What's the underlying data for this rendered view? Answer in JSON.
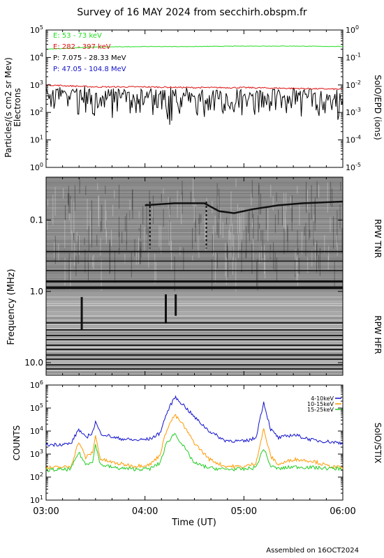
{
  "title": "Survey of 16 MAY 2024 from secchirh.obspm.fr",
  "footer": "Assembled on 16OCT2024",
  "time_axis": {
    "label": "Time (UT)",
    "ticks": [
      "03:00",
      "04:00",
      "05:00",
      "06:00"
    ],
    "range_hours": [
      3,
      6
    ]
  },
  "chart_data": [
    {
      "type": "line",
      "name": "epd",
      "log_y": true,
      "ylabel_left": "Particles/(s cm2 sr Mev)",
      "ylabel_left2": "Electrons",
      "ylabel_right": "SolO/EPD (ions)",
      "left_ticks": [
        "10^0",
        "10^1",
        "10^2",
        "10^3",
        "10^4",
        "10^5"
      ],
      "left_range_exp": [
        0,
        5
      ],
      "right_ticks": [
        "10^-5",
        "10^-4",
        "10^-3",
        "10^-2",
        "10^-1",
        "10^0"
      ],
      "legend": [
        {
          "label": "E: 53 - 73 keV",
          "color": "#22dd22"
        },
        {
          "label": "E: 282 - 397 keV",
          "color": "#dd1111"
        },
        {
          "label": "P: 7.075 - 28.33 MeV",
          "color": "#000000"
        },
        {
          "label": "P: 47.05 - 104.8 MeV",
          "color": "#1111cc"
        }
      ],
      "series": [
        {
          "name": "E: 53 - 73 keV",
          "x": [
            3.0,
            3.5,
            4.0,
            4.5,
            5.0,
            5.5,
            6.0
          ],
          "values": [
            20000,
            24000,
            25000,
            25000,
            26000,
            26000,
            25000
          ]
        },
        {
          "name": "E: 282 - 397 keV",
          "x": [
            3.0,
            3.5,
            4.0,
            4.5,
            5.0,
            5.5,
            6.0
          ],
          "values": [
            1000,
            850,
            850,
            800,
            800,
            750,
            700
          ]
        },
        {
          "name": "P: 7.075 - 28.33 MeV",
          "x": [
            3.0,
            3.5,
            4.0,
            4.5,
            5.0,
            5.5,
            6.0
          ],
          "values": [
            900,
            700,
            700,
            650,
            700,
            650,
            600
          ]
        }
      ]
    },
    {
      "type": "heatmap",
      "name": "rpw",
      "ylabel": "Frequency (MHz)",
      "label_tnr": "RPW TNR",
      "label_hfr": "RPW HFR",
      "y_ticks": [
        "0.1",
        "1.0",
        "10.0"
      ],
      "y_tick_values": [
        0.1,
        1.0,
        10.0
      ],
      "y_range": [
        0.025,
        15
      ]
    },
    {
      "type": "line",
      "name": "stix",
      "log_y": true,
      "ylabel": "COUNTS",
      "ylabel_right": "SolO/STIX",
      "y_ticks": [
        "10^1",
        "10^2",
        "10^3",
        "10^4",
        "10^5",
        "10^6"
      ],
      "y_range_exp": [
        1,
        6
      ],
      "legend": [
        {
          "label": "4-10keV",
          "color": "#1111cc"
        },
        {
          "label": "10-15keV",
          "color": "#ff9900"
        },
        {
          "label": "15-25keV",
          "color": "#22cc22"
        }
      ],
      "series": [
        {
          "name": "4-10keV",
          "color": "#1111cc",
          "x": [
            3.0,
            3.25,
            3.33,
            3.4,
            3.47,
            3.5,
            3.55,
            3.7,
            3.9,
            4.05,
            4.15,
            4.22,
            4.3,
            4.38,
            4.5,
            4.65,
            4.8,
            5.0,
            5.12,
            5.2,
            5.27,
            5.35,
            5.5,
            5.7,
            5.85,
            6.0
          ],
          "values": [
            2500,
            2800,
            12000,
            5000,
            9000,
            25000,
            8000,
            5000,
            4000,
            4500,
            8000,
            60000,
            300000,
            150000,
            40000,
            10000,
            4000,
            3500,
            5000,
            180000,
            12000,
            5000,
            7000,
            4000,
            3500,
            3000
          ]
        },
        {
          "name": "10-15keV",
          "color": "#ff9900",
          "x": [
            3.0,
            3.25,
            3.33,
            3.4,
            3.47,
            3.5,
            3.55,
            3.7,
            3.9,
            4.05,
            4.15,
            4.22,
            4.3,
            4.38,
            4.5,
            4.65,
            4.8,
            5.0,
            5.12,
            5.2,
            5.27,
            5.35,
            5.5,
            5.7,
            5.85,
            6.0
          ],
          "values": [
            250,
            280,
            3500,
            700,
            1200,
            6000,
            600,
            400,
            300,
            350,
            900,
            12000,
            50000,
            20000,
            3000,
            600,
            300,
            280,
            400,
            12000,
            800,
            350,
            600,
            500,
            300,
            250
          ]
        },
        {
          "name": "15-25keV",
          "color": "#22cc22",
          "x": [
            3.0,
            3.25,
            3.33,
            3.4,
            3.47,
            3.5,
            3.55,
            3.7,
            3.9,
            4.05,
            4.15,
            4.22,
            4.3,
            4.38,
            4.5,
            4.65,
            4.8,
            5.0,
            5.12,
            5.2,
            5.27,
            5.35,
            5.5,
            5.7,
            5.85,
            6.0
          ],
          "values": [
            200,
            220,
            1200,
            350,
            500,
            2500,
            350,
            250,
            220,
            230,
            400,
            3000,
            8000,
            2500,
            400,
            250,
            220,
            220,
            260,
            1800,
            300,
            230,
            280,
            260,
            240,
            230
          ]
        }
      ]
    }
  ]
}
